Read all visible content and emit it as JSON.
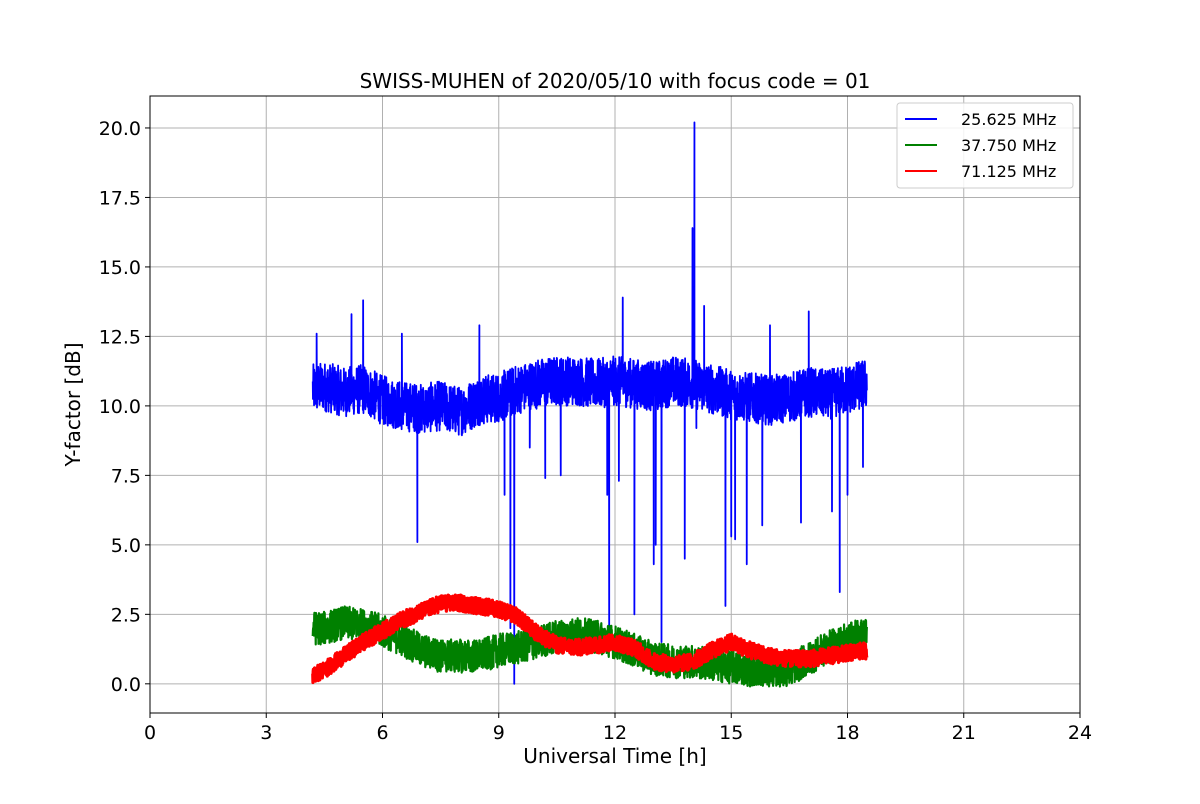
{
  "chart_data": {
    "type": "line",
    "title": "SWISS-MUHEN of 2020/05/10 with focus code = 01",
    "xlabel": "Universal Time [h]",
    "ylabel": "Y-factor [dB]",
    "xlim": [
      0,
      24
    ],
    "ylim": [
      -1.05,
      21.15
    ],
    "xticks": [
      0,
      3,
      6,
      9,
      12,
      15,
      18,
      21,
      24
    ],
    "yticks": [
      0.0,
      2.5,
      5.0,
      7.5,
      10.0,
      12.5,
      15.0,
      17.5,
      20.0
    ],
    "xtick_labels": [
      "0",
      "3",
      "6",
      "9",
      "12",
      "15",
      "18",
      "21",
      "24"
    ],
    "ytick_labels": [
      "0.0",
      "2.5",
      "5.0",
      "7.5",
      "10.0",
      "12.5",
      "15.0",
      "17.5",
      "20.0"
    ],
    "grid": true,
    "legend_position": "top-right",
    "series": [
      {
        "name": "25.625 MHz",
        "color": "#0000ff",
        "x": [
          4.2,
          4.5,
          5.0,
          5.5,
          6.0,
          6.5,
          7.0,
          7.5,
          8.0,
          8.5,
          9.0,
          9.5,
          10.0,
          10.5,
          11.0,
          11.5,
          12.0,
          12.5,
          13.0,
          13.5,
          14.0,
          14.5,
          15.0,
          15.5,
          16.0,
          16.5,
          17.0,
          17.5,
          18.0,
          18.5
        ],
        "y": [
          10.6,
          10.7,
          10.5,
          10.6,
          10.2,
          10.0,
          9.9,
          10.0,
          9.8,
          10.2,
          10.3,
          10.6,
          10.8,
          10.9,
          10.9,
          10.8,
          10.9,
          10.8,
          10.7,
          10.9,
          10.8,
          10.6,
          10.4,
          10.3,
          10.2,
          10.3,
          10.5,
          10.4,
          10.6,
          10.8
        ],
        "noise": 0.9,
        "spikes": [
          {
            "x": 4.3,
            "y": 12.6
          },
          {
            "x": 5.2,
            "y": 13.3
          },
          {
            "x": 5.5,
            "y": 13.8
          },
          {
            "x": 6.5,
            "y": 12.6
          },
          {
            "x": 6.9,
            "y": 5.1
          },
          {
            "x": 8.5,
            "y": 12.9
          },
          {
            "x": 9.15,
            "y": 6.8
          },
          {
            "x": 9.3,
            "y": 2.0
          },
          {
            "x": 9.4,
            "y": 0.0
          },
          {
            "x": 9.8,
            "y": 8.5
          },
          {
            "x": 10.2,
            "y": 7.4
          },
          {
            "x": 10.6,
            "y": 7.5
          },
          {
            "x": 11.8,
            "y": 6.8
          },
          {
            "x": 11.85,
            "y": 1.2
          },
          {
            "x": 12.1,
            "y": 7.3
          },
          {
            "x": 12.2,
            "y": 13.9
          },
          {
            "x": 12.5,
            "y": 2.5
          },
          {
            "x": 13.0,
            "y": 4.3
          },
          {
            "x": 13.05,
            "y": 5.0
          },
          {
            "x": 13.2,
            "y": 1.5
          },
          {
            "x": 13.8,
            "y": 4.5
          },
          {
            "x": 14.0,
            "y": 16.4
          },
          {
            "x": 14.05,
            "y": 20.2
          },
          {
            "x": 14.1,
            "y": 9.2
          },
          {
            "x": 14.3,
            "y": 13.6
          },
          {
            "x": 14.85,
            "y": 2.8
          },
          {
            "x": 15.0,
            "y": 5.3
          },
          {
            "x": 15.1,
            "y": 5.2
          },
          {
            "x": 15.4,
            "y": 4.3
          },
          {
            "x": 15.8,
            "y": 5.7
          },
          {
            "x": 16.0,
            "y": 12.9
          },
          {
            "x": 16.8,
            "y": 5.8
          },
          {
            "x": 17.0,
            "y": 13.4
          },
          {
            "x": 17.6,
            "y": 6.2
          },
          {
            "x": 17.8,
            "y": 3.3
          },
          {
            "x": 18.0,
            "y": 6.8
          },
          {
            "x": 18.4,
            "y": 7.8
          }
        ]
      },
      {
        "name": "37.750 MHz",
        "color": "#008000",
        "x": [
          4.2,
          4.5,
          5.0,
          5.5,
          6.0,
          6.5,
          7.0,
          7.5,
          8.0,
          8.5,
          9.0,
          9.5,
          10.0,
          10.5,
          11.0,
          11.5,
          12.0,
          12.5,
          13.0,
          13.5,
          14.0,
          14.5,
          15.0,
          15.5,
          16.0,
          16.5,
          17.0,
          17.5,
          18.0,
          18.5
        ],
        "y": [
          2.0,
          2.0,
          2.2,
          2.1,
          1.9,
          1.6,
          1.2,
          1.0,
          1.0,
          1.0,
          1.2,
          1.3,
          1.5,
          1.7,
          1.8,
          1.7,
          1.5,
          1.2,
          0.9,
          0.8,
          0.8,
          0.7,
          0.6,
          0.5,
          0.5,
          0.5,
          0.9,
          1.3,
          1.6,
          1.8
        ],
        "noise": 0.6
      },
      {
        "name": "71.125 MHz",
        "color": "#ff0000",
        "x": [
          4.2,
          4.5,
          5.0,
          5.5,
          6.0,
          6.5,
          7.0,
          7.5,
          8.0,
          8.5,
          9.0,
          9.5,
          10.0,
          10.5,
          11.0,
          11.5,
          12.0,
          12.5,
          13.0,
          13.5,
          14.0,
          14.5,
          15.0,
          15.5,
          16.0,
          16.5,
          17.0,
          17.5,
          18.0,
          18.5
        ],
        "y": [
          0.3,
          0.5,
          1.0,
          1.5,
          1.9,
          2.3,
          2.6,
          2.9,
          2.9,
          2.8,
          2.7,
          2.4,
          1.8,
          1.4,
          1.3,
          1.4,
          1.5,
          1.3,
          0.8,
          0.7,
          0.8,
          1.2,
          1.5,
          1.2,
          1.0,
          0.9,
          0.9,
          1.0,
          1.1,
          1.2
        ],
        "noise": 0.3
      }
    ]
  }
}
